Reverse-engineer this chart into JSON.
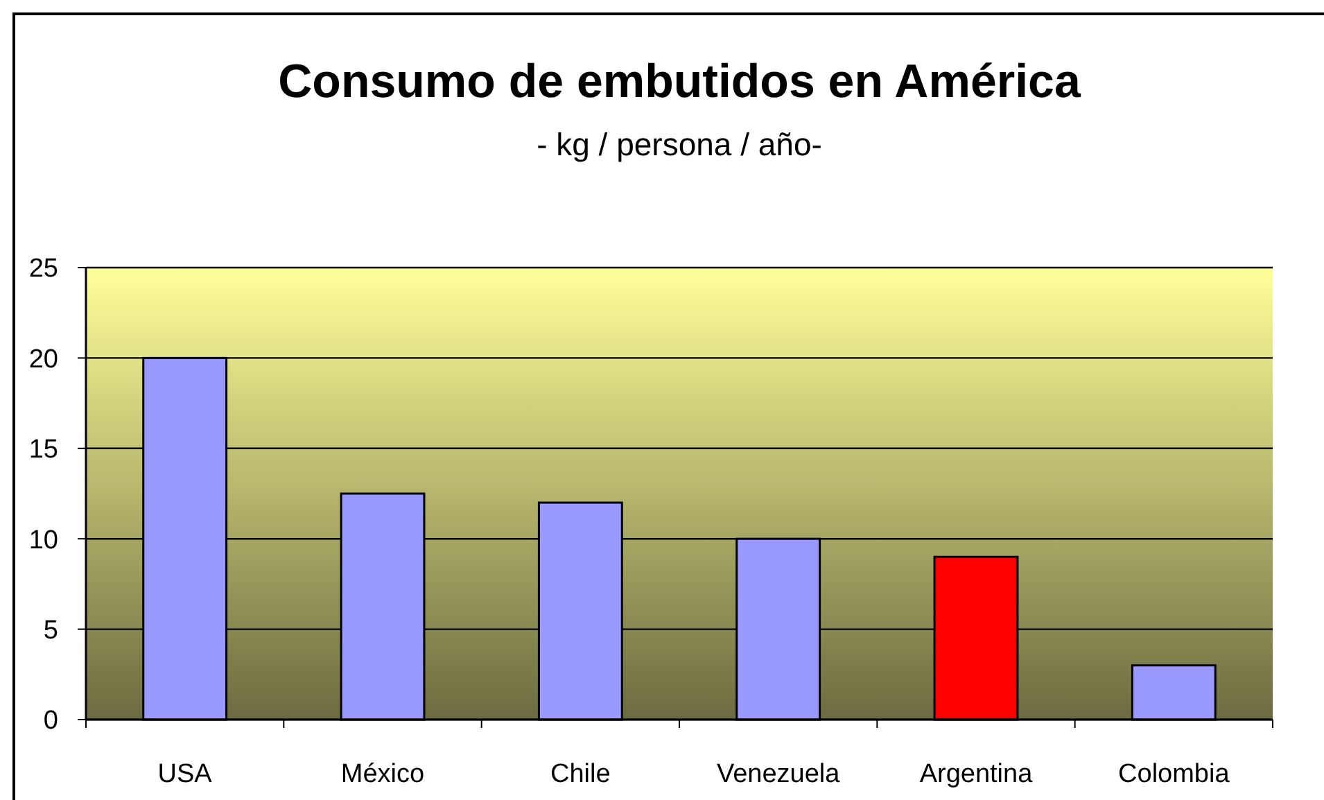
{
  "chart_data": {
    "type": "bar",
    "title": "Consumo de embutidos en América",
    "subtitle": "- kg / persona / año-",
    "categories": [
      "USA",
      "México",
      "Chile",
      "Venezuela",
      "Argentina",
      "Colombia"
    ],
    "values": [
      20,
      12.5,
      12,
      10,
      9,
      3
    ],
    "colors": [
      "#9999ff",
      "#9999ff",
      "#9999ff",
      "#9999ff",
      "#ff0000",
      "#9999ff"
    ],
    "ylim": [
      0,
      25
    ],
    "yticks": [
      0,
      5,
      10,
      15,
      20,
      25
    ],
    "grid": "y"
  }
}
